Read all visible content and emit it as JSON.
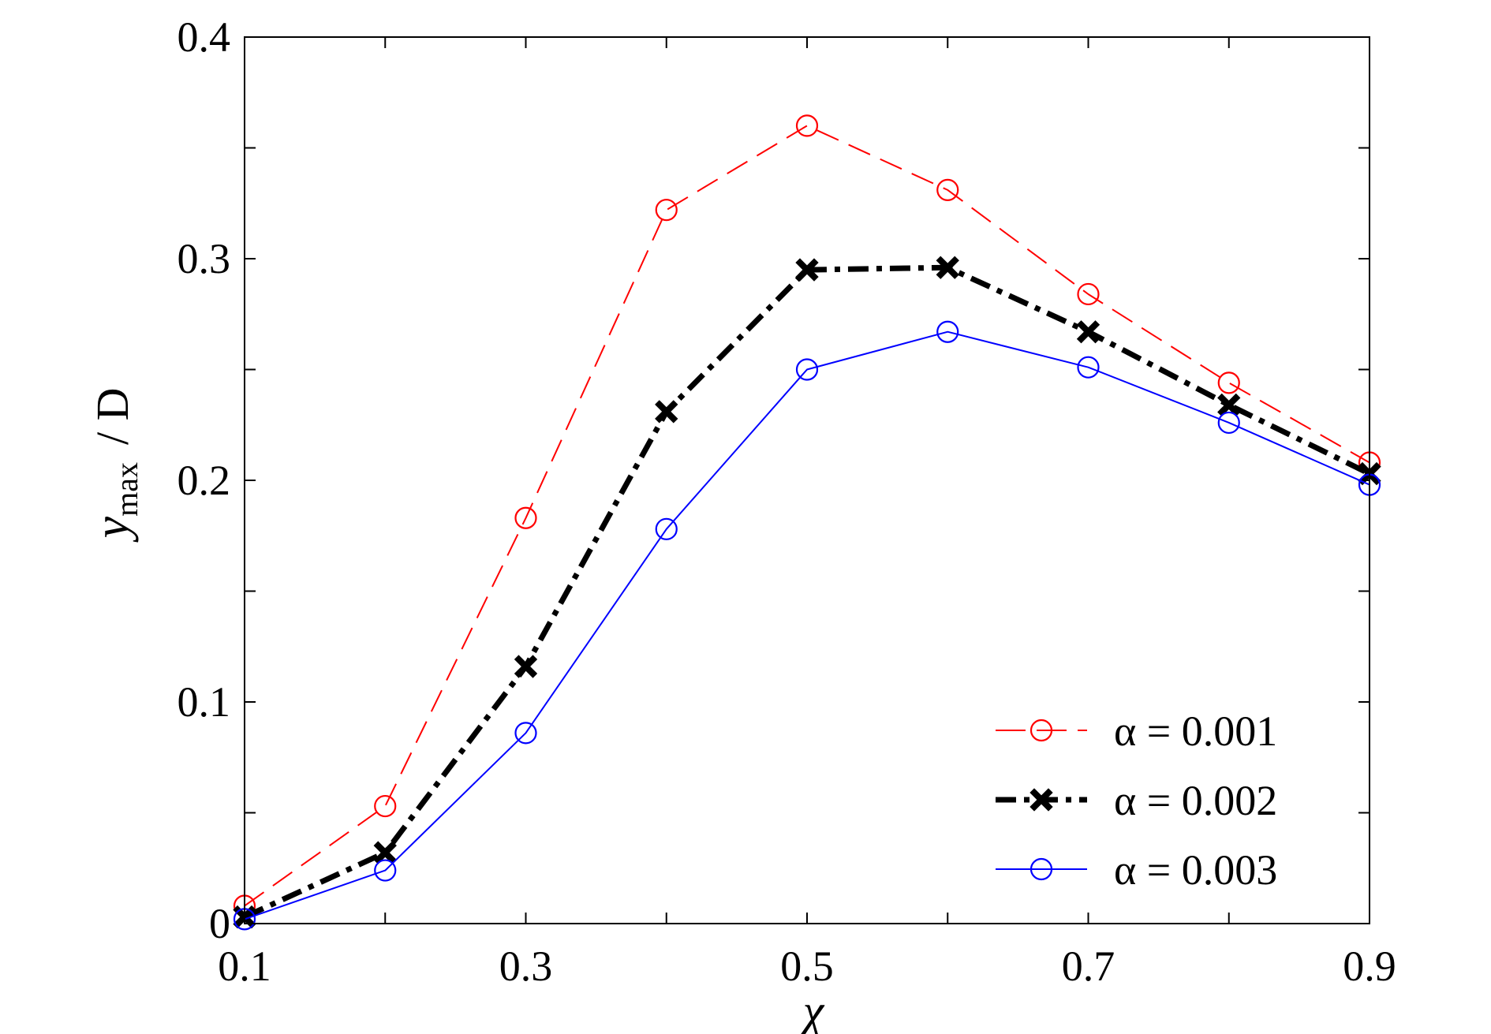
{
  "chart_data": {
    "type": "line",
    "x": [
      0.1,
      0.2,
      0.3,
      0.4,
      0.5,
      0.6,
      0.7,
      0.8,
      0.9
    ],
    "xlim": [
      0.1,
      0.9
    ],
    "ylim": [
      0,
      0.4
    ],
    "xticks": [
      0.1,
      0.3,
      0.5,
      0.7,
      0.9
    ],
    "xtick_labels": [
      "0.1",
      "0.3",
      "0.5",
      "0.7",
      "0.9"
    ],
    "xminor": [
      0.2,
      0.4,
      0.6,
      0.8
    ],
    "yticks": [
      0,
      0.1,
      0.2,
      0.3,
      0.4
    ],
    "ytick_labels": [
      "0",
      "0.1",
      "0.2",
      "0.3",
      "0.4"
    ],
    "yminor": [
      0.05,
      0.15,
      0.25,
      0.35
    ],
    "xlabel": "χ",
    "ylabel": {
      "var": "y",
      "sub": "max",
      "rest": "/ D"
    },
    "grid": false,
    "legend_position": "bottom-right",
    "series": [
      {
        "name": "α = 0.001",
        "color": "#ff0000",
        "line": "dashed",
        "marker": "open-circle",
        "values": [
          0.008,
          0.053,
          0.183,
          0.322,
          0.36,
          0.331,
          0.284,
          0.244,
          0.208
        ]
      },
      {
        "name": "α = 0.002",
        "color": "#000000",
        "line": "dash-dot",
        "marker": "x-filled",
        "values": [
          0.003,
          0.032,
          0.116,
          0.231,
          0.295,
          0.296,
          0.267,
          0.234,
          0.203
        ]
      },
      {
        "name": "α = 0.003",
        "color": "#0000ff",
        "line": "solid",
        "marker": "open-circle",
        "values": [
          0.002,
          0.024,
          0.086,
          0.178,
          0.25,
          0.267,
          0.251,
          0.226,
          0.198
        ]
      }
    ]
  }
}
